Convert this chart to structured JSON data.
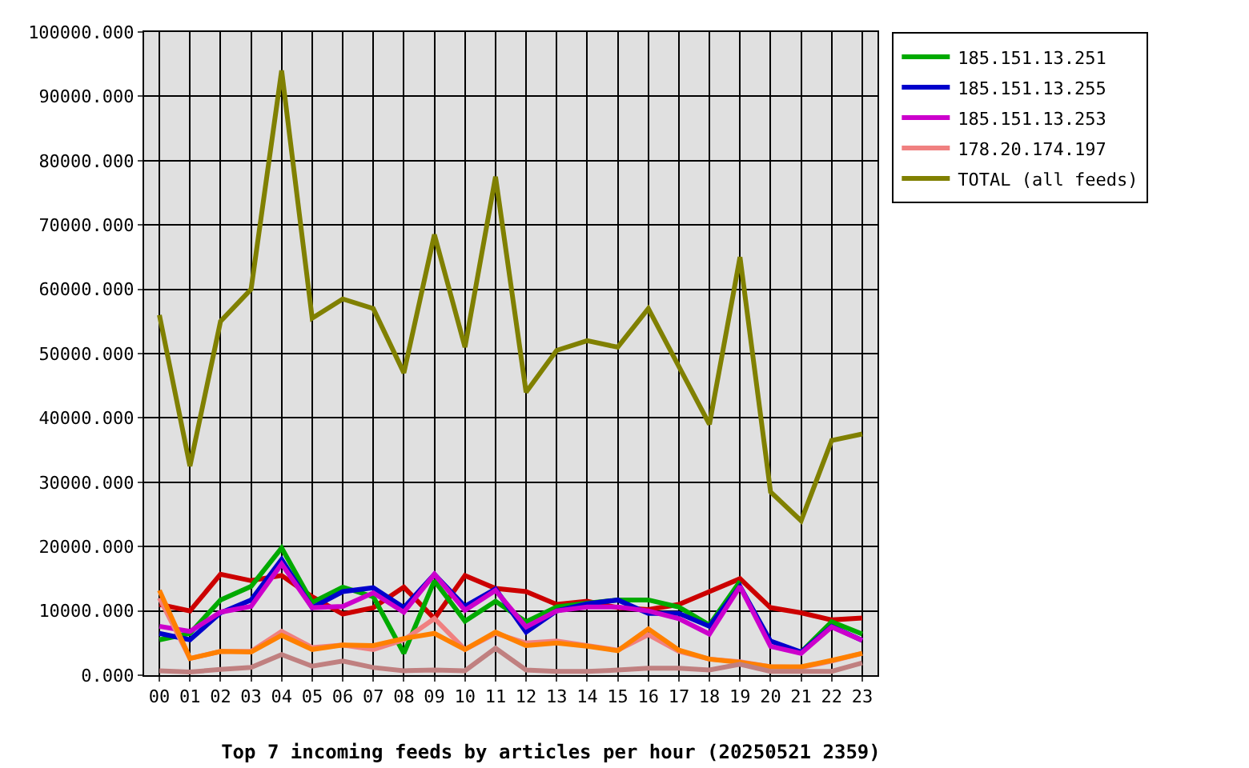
{
  "chart_data": {
    "type": "line",
    "title": "Top 7 incoming feeds by articles per hour (20250521 2359)",
    "categories": [
      "00",
      "01",
      "02",
      "03",
      "04",
      "05",
      "06",
      "07",
      "08",
      "09",
      "10",
      "11",
      "12",
      "13",
      "14",
      "15",
      "16",
      "17",
      "18",
      "19",
      "20",
      "21",
      "22",
      "23"
    ],
    "series": [
      {
        "name": null,
        "color": "#cc0000",
        "values": [
          11000,
          10000,
          15700,
          14700,
          15500,
          12200,
          9500,
          10500,
          13700,
          8800,
          15500,
          13500,
          13000,
          11000,
          11500,
          10500,
          10200,
          11000,
          13000,
          15000,
          10500,
          9700,
          8600,
          8900
        ]
      },
      {
        "name": "185.151.13.251",
        "color": "#00aa00",
        "values": [
          5500,
          6500,
          11700,
          13800,
          19800,
          11300,
          13700,
          12200,
          3400,
          14700,
          8400,
          11500,
          8300,
          10600,
          11200,
          11700,
          11700,
          10600,
          7800,
          14600,
          null,
          3600,
          8300,
          6400
        ]
      },
      {
        "name": "185.151.13.255",
        "color": "#0000cc",
        "values": [
          6500,
          5500,
          9700,
          11700,
          18000,
          10500,
          13000,
          13600,
          10500,
          15700,
          10700,
          13400,
          6700,
          10000,
          11100,
          11700,
          9600,
          9600,
          7600,
          13800,
          5300,
          3600,
          7600,
          5400
        ]
      },
      {
        "name": "185.151.13.253",
        "color": "#cc00cc",
        "values": [
          7600,
          6800,
          9800,
          10700,
          17300,
          10500,
          10700,
          12800,
          9800,
          15700,
          10100,
          13200,
          7500,
          10000,
          10600,
          10600,
          10000,
          8800,
          6400,
          13800,
          4500,
          3400,
          7500,
          5400
        ]
      },
      {
        "name": "178.20.174.197",
        "color": "#f08080",
        "values": [
          12000,
          2600,
          3700,
          3700,
          6800,
          4300,
          4700,
          4000,
          5500,
          8800,
          4000,
          6500,
          5000,
          5300,
          4600,
          3900,
          6300,
          3700,
          2500,
          2100,
          1300,
          1200,
          2200,
          3400
        ]
      },
      {
        "name": null,
        "color": "#ff8000",
        "values": [
          13200,
          2600,
          3700,
          3600,
          6200,
          4000,
          4700,
          4600,
          5700,
          6500,
          4000,
          6700,
          4600,
          5000,
          4500,
          3800,
          7200,
          3900,
          2500,
          2000,
          1300,
          1300,
          2300,
          3400
        ]
      },
      {
        "name": null,
        "color": "#c08080",
        "values": [
          700,
          500,
          900,
          1200,
          3200,
          1400,
          2200,
          1200,
          700,
          800,
          700,
          4200,
          800,
          600,
          600,
          800,
          1100,
          1100,
          800,
          1700,
          600,
          600,
          600,
          1900
        ]
      },
      {
        "name": "TOTAL (all feeds)",
        "color": "#808000",
        "values": [
          56000,
          32500,
          55000,
          60000,
          94000,
          55500,
          58500,
          57000,
          47000,
          68500,
          51000,
          77500,
          44000,
          50500,
          52000,
          51000,
          57000,
          48000,
          39000,
          65000,
          28500,
          24000,
          36500,
          37500
        ]
      }
    ],
    "ylim": [
      0,
      100000
    ],
    "yticks": [
      {
        "value": 0,
        "label": "0.000"
      },
      {
        "value": 10000,
        "label": "10000.000"
      },
      {
        "value": 20000,
        "label": "20000.000"
      },
      {
        "value": 30000,
        "label": "30000.000"
      },
      {
        "value": 40000,
        "label": "40000.000"
      },
      {
        "value": 50000,
        "label": "50000.000"
      },
      {
        "value": 60000,
        "label": "60000.000"
      },
      {
        "value": 70000,
        "label": "70000.000"
      },
      {
        "value": 80000,
        "label": "80000.000"
      },
      {
        "value": 90000,
        "label": "90000.000"
      },
      {
        "value": 100000,
        "label": "100000.000"
      }
    ],
    "grid": true,
    "legend": "top right",
    "line_style": "solid"
  }
}
